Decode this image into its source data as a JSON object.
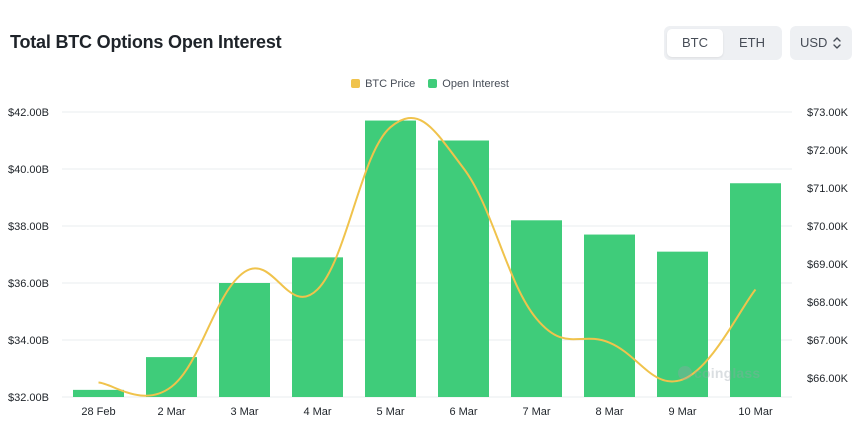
{
  "header": {
    "title": "Total BTC Options Open Interest",
    "asset_tabs": [
      {
        "label": "BTC",
        "active": true
      },
      {
        "label": "ETH",
        "active": false
      }
    ],
    "currency": {
      "label": "USD",
      "icon": "chevron-up-down-icon"
    }
  },
  "watermark": {
    "label": "coinglass",
    "icon": "coinglass-logo-icon"
  },
  "colors": {
    "open_interest": "#3fcc7a",
    "btc_price": "#f0c34c",
    "grid": "#eaecef",
    "axis_text": "#1e2329"
  },
  "chart_data": {
    "type": "bar",
    "title": "Total BTC Options Open Interest",
    "categories": [
      "28 Feb",
      "2 Mar",
      "3 Mar",
      "4 Mar",
      "5 Mar",
      "6 Mar",
      "7 Mar",
      "8 Mar",
      "9 Mar",
      "10 Mar"
    ],
    "legend": [
      "BTC Price",
      "Open Interest"
    ],
    "legend_position": "top-center",
    "grid": true,
    "series": [
      {
        "name": "Open Interest",
        "type": "bar",
        "axis": "left",
        "values": [
          32.25,
          33.4,
          36.0,
          36.9,
          41.7,
          41.0,
          38.2,
          37.7,
          37.1,
          39.5
        ]
      },
      {
        "name": "BTC Price",
        "type": "line",
        "axis": "right",
        "values": [
          65880,
          65770,
          68790,
          68330,
          72600,
          71520,
          67560,
          66930,
          65960,
          68330
        ]
      }
    ],
    "y_left": {
      "ylim": [
        32,
        42
      ],
      "ticks": [
        32,
        34,
        36,
        38,
        40,
        42
      ],
      "tick_labels": [
        "$32.00B",
        "$34.00B",
        "$36.00B",
        "$38.00B",
        "$40.00B",
        "$42.00B"
      ]
    },
    "y_right": {
      "ylim": [
        65500,
        73000
      ],
      "ticks": [
        66000,
        67000,
        68000,
        69000,
        70000,
        71000,
        72000,
        73000
      ],
      "tick_labels": [
        "$66.00K",
        "$67.00K",
        "$68.00K",
        "$69.00K",
        "$70.00K",
        "$71.00K",
        "$72.00K",
        "$73.00K"
      ]
    }
  }
}
